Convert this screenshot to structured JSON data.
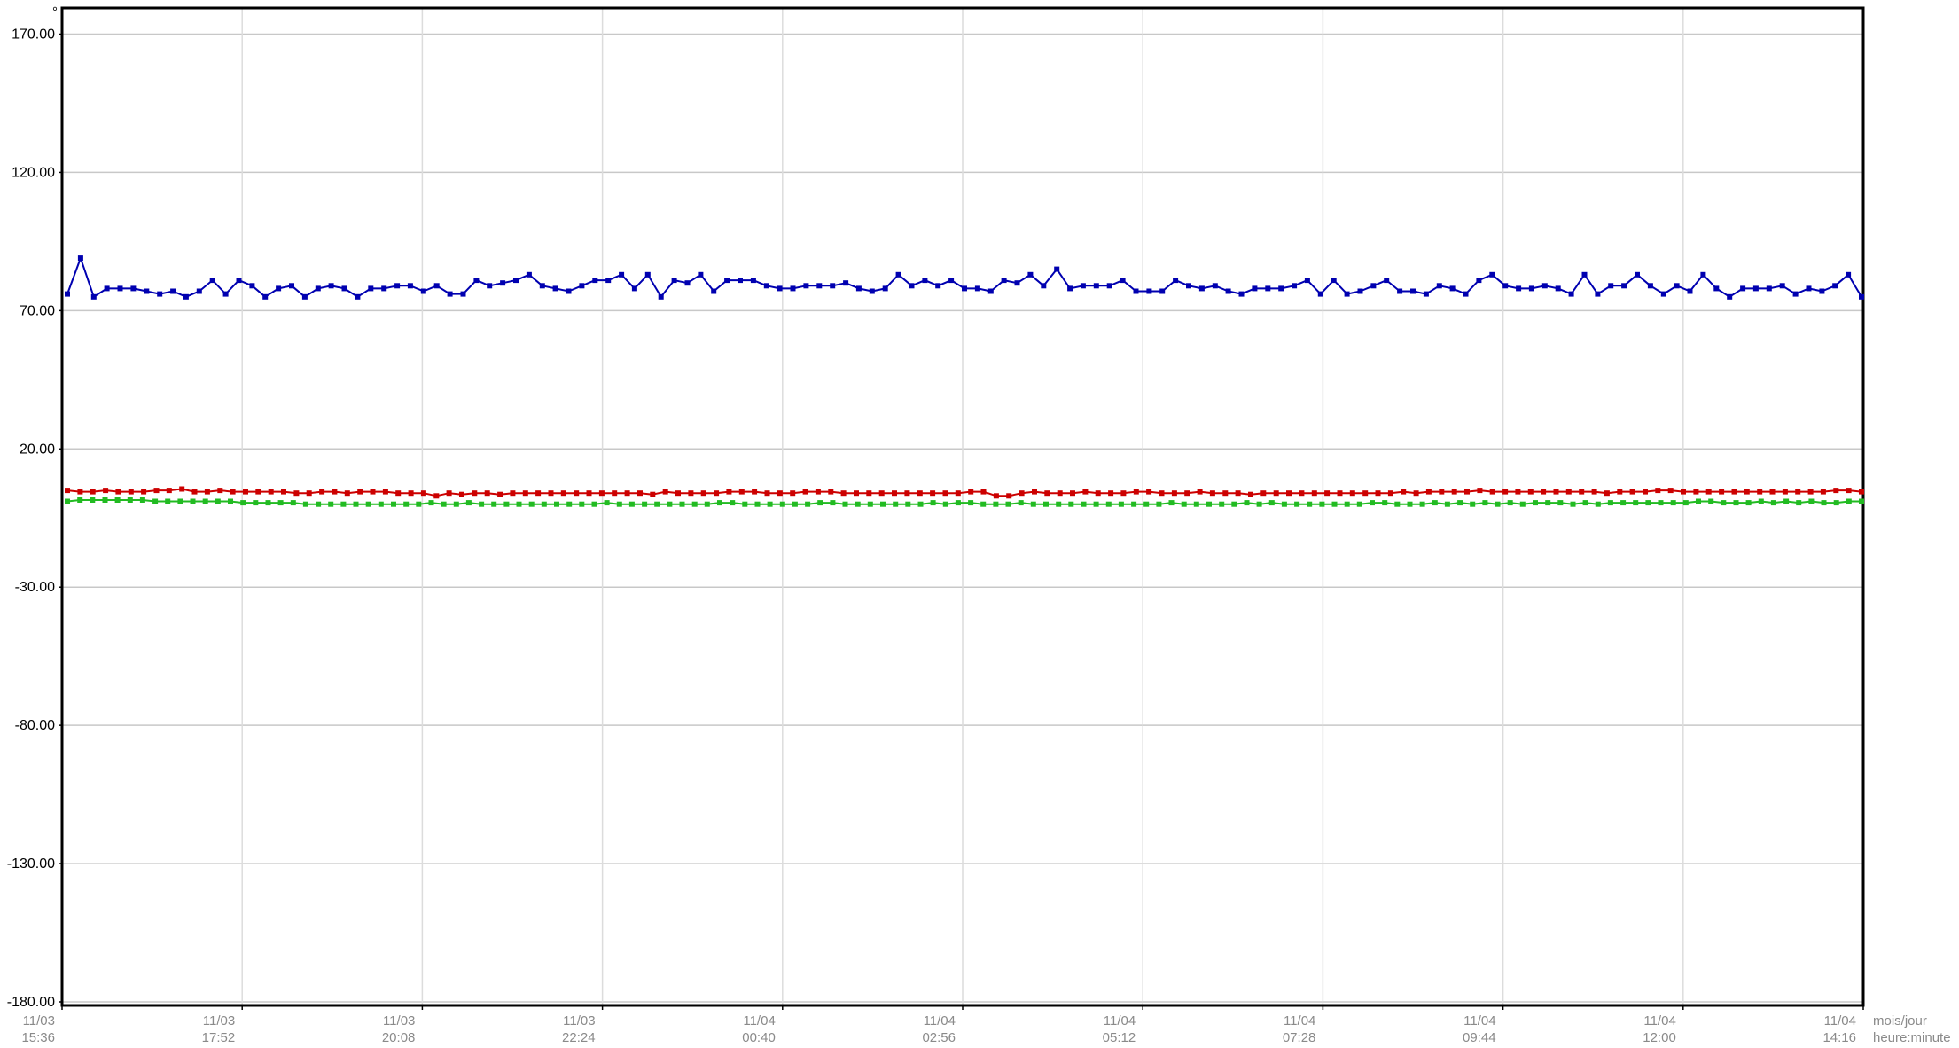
{
  "chart_data": {
    "type": "line",
    "y_unit": "°",
    "ylim": [
      -180,
      180
    ],
    "yticks": [
      "170.00",
      "120.00",
      "70.00",
      "20.00",
      "-30.00",
      "-80.00",
      "-130.00",
      "-180.00"
    ],
    "ytick_values": [
      170,
      120,
      70,
      20,
      -30,
      -80,
      -130,
      -180
    ],
    "x_axis_labels": [
      {
        "date": "11/03",
        "time": "15:36"
      },
      {
        "date": "11/03",
        "time": "17:52"
      },
      {
        "date": "11/03",
        "time": "20:08"
      },
      {
        "date": "11/03",
        "time": "22:24"
      },
      {
        "date": "11/04",
        "time": "00:40"
      },
      {
        "date": "11/04",
        "time": "02:56"
      },
      {
        "date": "11/04",
        "time": "05:12"
      },
      {
        "date": "11/04",
        "time": "07:28"
      },
      {
        "date": "11/04",
        "time": "09:44"
      },
      {
        "date": "11/04",
        "time": "12:00"
      },
      {
        "date": "11/04",
        "time": "14:16"
      }
    ],
    "x_legend": {
      "date_format": "mois/jour",
      "time_format": "heure:minute"
    },
    "x_range": [
      "11/03 15:36",
      "11/04 15:36"
    ],
    "grid": true,
    "legend": "none",
    "series": [
      {
        "color": "#0000b0",
        "values": [
          76,
          89,
          75,
          78,
          78,
          78,
          77,
          76,
          77,
          75,
          77,
          81,
          76,
          81,
          79,
          75,
          78,
          79,
          75,
          78,
          79,
          78,
          75,
          78,
          78,
          79,
          79,
          77,
          79,
          76,
          76,
          81,
          79,
          80,
          81,
          83,
          79,
          78,
          77,
          79,
          81,
          81,
          83,
          78,
          83,
          75,
          81,
          80,
          83,
          77,
          81,
          81,
          81,
          79,
          78,
          78,
          79,
          79,
          79,
          80,
          78,
          77,
          78,
          83,
          79,
          81,
          79,
          81,
          78,
          78,
          77,
          81,
          80,
          83,
          79,
          85,
          78,
          79,
          79,
          79,
          81,
          77,
          77,
          77,
          81,
          79,
          78,
          79,
          77,
          76,
          78,
          78,
          78,
          79,
          81,
          76,
          81,
          76,
          77,
          79,
          81,
          77,
          77,
          76,
          79,
          78,
          76,
          81,
          83,
          79,
          78,
          78,
          79,
          78,
          76,
          83,
          76,
          79,
          79,
          83,
          79,
          76,
          79,
          77,
          83,
          78,
          75,
          78,
          78,
          78,
          79,
          76,
          78,
          77,
          79,
          83,
          75
        ]
      },
      {
        "color": "#cc0000",
        "values": [
          5,
          4.5,
          4.5,
          5,
          4.5,
          4.5,
          4.5,
          5,
          5,
          5.5,
          4.5,
          4.5,
          5,
          4.5,
          4.5,
          4.5,
          4.5,
          4.5,
          4,
          4,
          4.5,
          4.5,
          4,
          4.5,
          4.5,
          4.5,
          4,
          4,
          4,
          3,
          4,
          3.5,
          4,
          4,
          3.5,
          4,
          4,
          4,
          4,
          4,
          4,
          4,
          4,
          4,
          4,
          4,
          3.5,
          4.5,
          4,
          4,
          4,
          4,
          4.5,
          4.5,
          4.5,
          4,
          4,
          4,
          4.5,
          4.5,
          4.5,
          4,
          4,
          4,
          4,
          4,
          4,
          4,
          4,
          4,
          4,
          4.5,
          4.5,
          3,
          3,
          4,
          4.5,
          4,
          4,
          4,
          4.5,
          4,
          4,
          4,
          4.5,
          4.5,
          4,
          4,
          4,
          4.5,
          4,
          4,
          4,
          3.5,
          4,
          4,
          4,
          4,
          4,
          4,
          4,
          4,
          4,
          4,
          4,
          4.5,
          4,
          4.5,
          4.5,
          4.5,
          4.5,
          5,
          4.5,
          4.5,
          4.5,
          4.5,
          4.5,
          4.5,
          4.5,
          4.5,
          4.5,
          4,
          4.5,
          4.5,
          4.5,
          5,
          5,
          4.5,
          4.5,
          4.5,
          4.5,
          4.5,
          4.5,
          4.5,
          4.5,
          4.5,
          4.5,
          4.5,
          4.5,
          5,
          5,
          4.5
        ]
      },
      {
        "color": "#22bb22",
        "values": [
          1,
          1.5,
          1.5,
          1.5,
          1.5,
          1.5,
          1.5,
          1,
          1,
          1,
          1,
          1,
          1,
          1,
          0.5,
          0.5,
          0.5,
          0.5,
          0.5,
          0,
          0,
          0,
          0,
          0,
          0,
          0,
          0,
          0,
          0,
          0.5,
          0,
          0,
          0.5,
          0,
          0,
          0,
          0,
          0,
          0,
          0,
          0,
          0,
          0,
          0.5,
          0,
          0,
          0,
          0,
          0,
          0,
          0,
          0,
          0.5,
          0.5,
          0,
          0,
          0,
          0,
          0,
          0,
          0.5,
          0.5,
          0,
          0,
          0,
          0,
          0,
          0,
          0,
          0.5,
          0,
          0.5,
          0.5,
          0,
          0,
          0,
          0.5,
          0,
          0,
          0,
          0,
          0,
          0,
          0,
          0,
          0,
          0,
          0,
          0.5,
          0,
          0,
          0,
          0,
          0,
          0.5,
          0,
          0.5,
          0,
          0,
          0,
          0,
          0,
          0,
          0,
          0.5,
          0.5,
          0,
          0,
          0,
          0.5,
          0,
          0.5,
          0,
          0.5,
          0,
          0.5,
          0,
          0.5,
          0.5,
          0.5,
          0,
          0.5,
          0,
          0.5,
          0.5,
          0.5,
          0.5,
          0.5,
          0.5,
          0.5,
          1,
          1,
          0.5,
          0.5,
          0.5,
          1,
          0.5,
          1,
          0.5,
          1,
          0.5,
          0.5,
          1,
          1
        ]
      }
    ]
  }
}
